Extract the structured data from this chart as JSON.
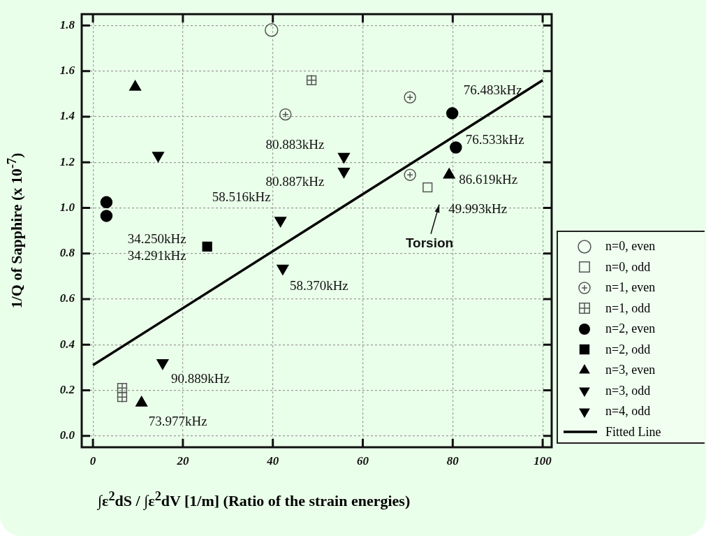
{
  "chart_data": {
    "type": "scatter",
    "xlabel": "∫ε$^{2}$dS  /  ∫ε$^{2}$dV [1/m]   (Ratio of the strain energies)",
    "ylabel": "1/Q of Sapphire (x 10$^{-7}$)",
    "xlim": [
      -2.5,
      102
    ],
    "xticks": [
      0,
      20,
      40,
      60,
      80,
      100
    ],
    "ylim": [
      -0.05,
      1.85
    ],
    "yticks": [
      {
        "value": 0,
        "label": "0.0"
      },
      {
        "value": 0.2,
        "label": "0.2"
      },
      {
        "value": 0.4,
        "label": "0.4"
      },
      {
        "value": 0.6,
        "label": "0.6"
      },
      {
        "value": 0.8,
        "label": "0.8"
      },
      {
        "value": 1,
        "label": "1.0"
      },
      {
        "value": 1.2,
        "label": "1.2"
      },
      {
        "value": 1.4,
        "label": "1.4"
      },
      {
        "value": 1.6,
        "label": "1.6"
      },
      {
        "value": 1.8,
        "label": "1.8"
      }
    ],
    "grid": true,
    "legend": "right",
    "series": [
      {
        "name": "n=0, even",
        "color": "#555555",
        "marker": "circle",
        "x": [
          39.7
        ],
        "values": [
          1.78
        ]
      },
      {
        "name": "n=0, odd",
        "color": "#555555",
        "marker": "square",
        "x": [
          74.4
        ],
        "values": [
          1.09
        ]
      },
      {
        "name": "n=1, even",
        "color": "#555555",
        "marker": "circle",
        "x": [
          42.8,
          70.5,
          70.5
        ],
        "values": [
          1.41,
          1.485,
          1.145
        ]
      },
      {
        "name": "n=1, odd",
        "color": "#555555",
        "marker": "cross",
        "x": [
          48.6,
          6.5,
          6.5
        ],
        "values": [
          1.56,
          0.21,
          0.17
        ]
      },
      {
        "name": "n=2, even",
        "color": "#000000",
        "marker": "circle",
        "x": [
          3.0,
          3.0,
          79.9,
          80.7
        ],
        "values": [
          1.025,
          0.965,
          1.415,
          1.265
        ]
      },
      {
        "name": "n=2, odd",
        "color": "#000000",
        "marker": "square",
        "x": [
          25.4
        ],
        "values": [
          0.83
        ]
      },
      {
        "name": "n=3, even",
        "color": "#000000",
        "marker": "triangle",
        "x": [
          9.4,
          79.2,
          10.8
        ],
        "values": [
          1.53,
          1.145,
          0.145
        ]
      },
      {
        "name": "n=3, odd",
        "color": "#000000",
        "marker": "triangle",
        "x": [
          14.5,
          41.7,
          42.2,
          15.5
        ],
        "values": [
          1.23,
          0.945,
          0.735,
          0.32
        ]
      },
      {
        "name": "n=4, odd",
        "color": "#000000",
        "marker": "triangle",
        "x": [
          55.8,
          55.8
        ],
        "values": [
          1.225,
          1.16
        ]
      },
      {
        "name": "Fitted Line",
        "type": "line",
        "color": "#000000",
        "marker": "none",
        "line_style": "solid",
        "x": [
          0,
          100
        ],
        "values": [
          0.31,
          1.56
        ]
      }
    ],
    "annotations": [
      {
        "text": "76.483kHz",
        "x": 79.9,
        "y": 1.415
      },
      {
        "text": "76.533kHz",
        "x": 80.7,
        "y": 1.265
      },
      {
        "text": "86.619kHz",
        "x": 79.2,
        "y": 1.145
      },
      {
        "text": "49.993kHz",
        "x": 74.4,
        "y": 1.09
      },
      {
        "text": "80.883kHz",
        "x": 55.8,
        "y": 1.225
      },
      {
        "text": "80.887kHz",
        "x": 55.8,
        "y": 1.16
      },
      {
        "text": "58.516kHz",
        "x": 41.7,
        "y": 0.945
      },
      {
        "text": "34.250kHz",
        "x": 25.4,
        "y": 0.83
      },
      {
        "text": "34.291kHz",
        "x": 25.4,
        "y": 0.83
      },
      {
        "text": "58.370kHz",
        "x": 42.2,
        "y": 0.735
      },
      {
        "text": "90.889kHz",
        "x": 15.5,
        "y": 0.32
      },
      {
        "text": "73.977kHz",
        "x": 10.8,
        "y": 0.145
      },
      "Torsion"
    ]
  }
}
